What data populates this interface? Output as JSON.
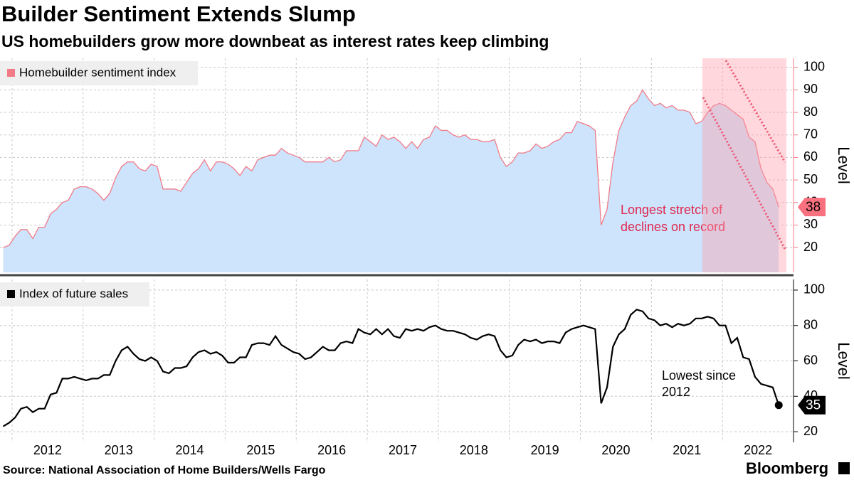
{
  "title": "Builder Sentiment Extends Slump",
  "subtitle": "US homebuilders grow more downbeat as interest rates keep climbing",
  "source": "Source: National Association of Home Builders/Wells Fargo",
  "brand": "Bloomberg",
  "chart_data": [
    {
      "type": "area",
      "series": [
        {
          "name": "Homebuilder sentiment index",
          "color": "#f27a87",
          "fill": "#cde4fc",
          "values": [
            20,
            21,
            25,
            28,
            28,
            24,
            29,
            29,
            35,
            37,
            40,
            41,
            46,
            47,
            47,
            46,
            44,
            41,
            44,
            51,
            56,
            58,
            58,
            55,
            54,
            57,
            56,
            46,
            46,
            46,
            45,
            49,
            53,
            55,
            59,
            54,
            58,
            58,
            57,
            55,
            52,
            56,
            54,
            59,
            60,
            61,
            61,
            64,
            62,
            61,
            60,
            58,
            58,
            58,
            58,
            60,
            58,
            59,
            63,
            63,
            63,
            69,
            67,
            65,
            70,
            68,
            69,
            67,
            64,
            67,
            64,
            68,
            69,
            74,
            72,
            72,
            70,
            69,
            70,
            68,
            68,
            67,
            67,
            68,
            60,
            56,
            58,
            62,
            62,
            63,
            66,
            64,
            65,
            67,
            68,
            71,
            71,
            76,
            75,
            74,
            72,
            30,
            37,
            58,
            72,
            78,
            83,
            85,
            90,
            86,
            83,
            84,
            82,
            83,
            81,
            81,
            80,
            75,
            76,
            80,
            83,
            84,
            83,
            81,
            79,
            77,
            69,
            67,
            55,
            49,
            46,
            38
          ]
        }
      ],
      "x": [
        2011.875,
        2011.958,
        2012.042,
        2012.125,
        2012.208,
        2012.292,
        2012.375,
        2012.458,
        2012.542,
        2012.625,
        2012.708,
        2012.792,
        2012.875,
        2012.958,
        2013.042,
        2013.125,
        2013.208,
        2013.292,
        2013.375,
        2013.458,
        2013.542,
        2013.625,
        2013.708,
        2013.792,
        2013.875,
        2013.958,
        2014.042,
        2014.125,
        2014.208,
        2014.292,
        2014.375,
        2014.458,
        2014.542,
        2014.625,
        2014.708,
        2014.792,
        2014.875,
        2014.958,
        2015.042,
        2015.125,
        2015.208,
        2015.292,
        2015.375,
        2015.458,
        2015.542,
        2015.625,
        2015.708,
        2015.792,
        2015.875,
        2015.958,
        2016.042,
        2016.125,
        2016.208,
        2016.292,
        2016.375,
        2016.458,
        2016.542,
        2016.625,
        2016.708,
        2016.792,
        2016.875,
        2016.958,
        2017.042,
        2017.125,
        2017.208,
        2017.292,
        2017.375,
        2017.458,
        2017.542,
        2017.625,
        2017.708,
        2017.792,
        2017.875,
        2017.958,
        2018.042,
        2018.125,
        2018.208,
        2018.292,
        2018.375,
        2018.458,
        2018.542,
        2018.625,
        2018.708,
        2018.792,
        2018.875,
        2018.958,
        2019.042,
        2019.125,
        2019.208,
        2019.292,
        2019.375,
        2019.458,
        2019.542,
        2019.625,
        2019.708,
        2019.792,
        2019.875,
        2019.958,
        2020.042,
        2020.125,
        2020.208,
        2020.292,
        2020.375,
        2020.458,
        2020.542,
        2020.625,
        2020.708,
        2020.792,
        2020.875,
        2020.958,
        2021.042,
        2021.125,
        2021.208,
        2021.292,
        2021.375,
        2021.458,
        2021.542,
        2021.625,
        2021.708,
        2021.792,
        2021.875,
        2021.958,
        2022.042,
        2022.125,
        2022.208,
        2022.292,
        2022.375,
        2022.458,
        2022.542,
        2022.625,
        2022.708,
        2022.792
      ],
      "xlim": [
        2011.83,
        2023.0
      ],
      "xticks": [
        2012,
        2013,
        2014,
        2015,
        2016,
        2017,
        2018,
        2019,
        2020,
        2021,
        2022
      ],
      "ylim": [
        9,
        104
      ],
      "yticks": [
        20,
        30,
        40,
        50,
        60,
        70,
        80,
        90,
        100
      ],
      "y_label": "Level",
      "grid": true,
      "annotation": [
        "Longest stretch of",
        "declines on record"
      ]
    },
    {
      "type": "line",
      "series": [
        {
          "name": "Index of future sales",
          "color": "#000000",
          "values": [
            23,
            25,
            28,
            33,
            34,
            31,
            33,
            33,
            41,
            42,
            50,
            50,
            51,
            50,
            49,
            50,
            50,
            52,
            52,
            60,
            66,
            68,
            64,
            61,
            60,
            62,
            60,
            54,
            53,
            56,
            56,
            57,
            62,
            65,
            66,
            64,
            65,
            63,
            59,
            59,
            62,
            62,
            69,
            70,
            70,
            69,
            74,
            69,
            67,
            65,
            64,
            61,
            62,
            65,
            68,
            66,
            66,
            70,
            71,
            70,
            78,
            76,
            75,
            78,
            75,
            78,
            74,
            73,
            78,
            77,
            78,
            77,
            79,
            80,
            78,
            77,
            77,
            76,
            75,
            73,
            72,
            74,
            75,
            74,
            66,
            62,
            63,
            69,
            72,
            71,
            72,
            70,
            71,
            71,
            70,
            76,
            78,
            79,
            80,
            79,
            78,
            36,
            45,
            68,
            75,
            78,
            86,
            89,
            88,
            84,
            83,
            80,
            81,
            79,
            81,
            80,
            81,
            84,
            84,
            85,
            84,
            80,
            80,
            70,
            73,
            62,
            61,
            51,
            47,
            46,
            45,
            35
          ]
        }
      ],
      "x": [
        2011.875,
        2011.958,
        2012.042,
        2012.125,
        2012.208,
        2012.292,
        2012.375,
        2012.458,
        2012.542,
        2012.625,
        2012.708,
        2012.792,
        2012.875,
        2012.958,
        2013.042,
        2013.125,
        2013.208,
        2013.292,
        2013.375,
        2013.458,
        2013.542,
        2013.625,
        2013.708,
        2013.792,
        2013.875,
        2013.958,
        2014.042,
        2014.125,
        2014.208,
        2014.292,
        2014.375,
        2014.458,
        2014.542,
        2014.625,
        2014.708,
        2014.792,
        2014.875,
        2014.958,
        2015.042,
        2015.125,
        2015.208,
        2015.292,
        2015.375,
        2015.458,
        2015.542,
        2015.625,
        2015.708,
        2015.792,
        2015.875,
        2015.958,
        2016.042,
        2016.125,
        2016.208,
        2016.292,
        2016.375,
        2016.458,
        2016.542,
        2016.625,
        2016.708,
        2016.792,
        2016.875,
        2016.958,
        2017.042,
        2017.125,
        2017.208,
        2017.292,
        2017.375,
        2017.458,
        2017.542,
        2017.625,
        2017.708,
        2017.792,
        2017.875,
        2017.958,
        2018.042,
        2018.125,
        2018.208,
        2018.292,
        2018.375,
        2018.458,
        2018.542,
        2018.625,
        2018.708,
        2018.792,
        2018.875,
        2018.958,
        2019.042,
        2019.125,
        2019.208,
        2019.292,
        2019.375,
        2019.458,
        2019.542,
        2019.625,
        2019.708,
        2019.792,
        2019.875,
        2019.958,
        2020.042,
        2020.125,
        2020.208,
        2020.292,
        2020.375,
        2020.458,
        2020.542,
        2020.625,
        2020.708,
        2020.792,
        2020.875,
        2020.958,
        2021.042,
        2021.125,
        2021.208,
        2021.292,
        2021.375,
        2021.458,
        2021.542,
        2021.625,
        2021.708,
        2021.792,
        2021.875,
        2021.958,
        2022.042,
        2022.125,
        2022.208,
        2022.292,
        2022.375,
        2022.458,
        2022.542,
        2022.625,
        2022.708,
        2022.792
      ],
      "xlim": [
        2011.83,
        2023.0
      ],
      "xticks": [
        2012,
        2013,
        2014,
        2015,
        2016,
        2017,
        2018,
        2019,
        2020,
        2021,
        2022
      ],
      "ylim": [
        14,
        106
      ],
      "yticks": [
        20,
        40,
        60,
        80,
        100
      ],
      "y_label": "Level",
      "grid": true,
      "annotation": [
        "Lowest since",
        "2012"
      ]
    }
  ]
}
